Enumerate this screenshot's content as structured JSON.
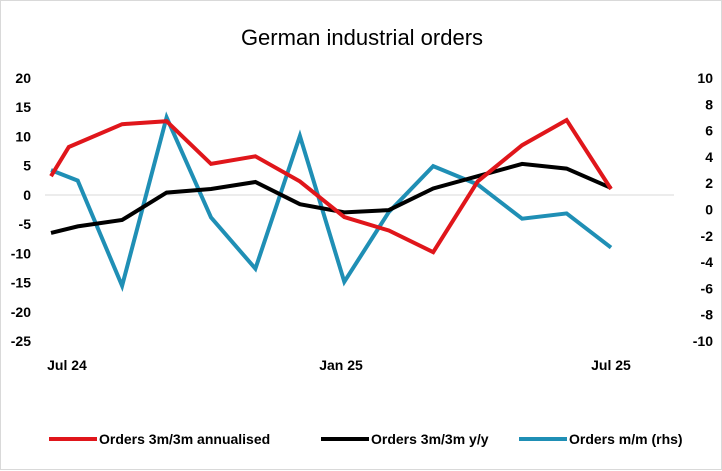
{
  "chart_data": {
    "type": "line",
    "title": "German industrial orders",
    "x_labels": [
      "Jul 24",
      "Jan 25",
      "Jul 25"
    ],
    "months": 13,
    "left_axis": {
      "min": -25,
      "max": 20,
      "step": 5,
      "ticks": [
        "20",
        "15",
        "10",
        "5",
        "0",
        "-5",
        "-10",
        "-15",
        "-20",
        "-25"
      ]
    },
    "right_axis": {
      "min": -10,
      "max": 10,
      "step": 2,
      "ticks": [
        "10",
        "8",
        "6",
        "4",
        "2",
        "0",
        "-2",
        "-4",
        "-6",
        "-8",
        "-10"
      ]
    },
    "series": [
      {
        "name": "Orders 3m/3m annualised",
        "color": "#e0161b",
        "axis": "left",
        "x": [
          0,
          0.4,
          1.6,
          2.6,
          3.6,
          4.6,
          5.6,
          6.6,
          7.6,
          8.6,
          9.6,
          10.6,
          11.6,
          12.6
        ],
        "values": [
          3.2,
          8.2,
          12.1,
          12.6,
          5.3,
          6.6,
          2.3,
          -3.8,
          -6.1,
          -9.8,
          2.3,
          8.5,
          12.8,
          1.0
        ]
      },
      {
        "name": "Orders 3m/3m y/y",
        "color": "#000000",
        "axis": "left",
        "x": [
          0,
          0.6,
          1.6,
          2.6,
          3.6,
          4.6,
          5.6,
          6.6,
          7.6,
          8.6,
          9.6,
          10.6,
          11.6,
          12.6
        ],
        "values": [
          -6.5,
          -5.4,
          -4.3,
          0.4,
          1.0,
          2.2,
          -1.6,
          -3.0,
          -2.6,
          1.1,
          3.2,
          5.3,
          4.5,
          1.2
        ]
      },
      {
        "name": "Orders m/m (rhs)",
        "color": "#1f8fb5",
        "axis": "right",
        "x": [
          0,
          0.6,
          1.6,
          2.6,
          3.6,
          4.6,
          5.6,
          6.6,
          7.6,
          8.6,
          9.6,
          10.6,
          11.6,
          12.6
        ],
        "values": [
          3.0,
          2.2,
          -5.8,
          7.0,
          -0.6,
          -4.5,
          5.6,
          -5.5,
          -0.2,
          3.3,
          1.9,
          -0.7,
          -0.3,
          -2.9
        ]
      }
    ]
  }
}
